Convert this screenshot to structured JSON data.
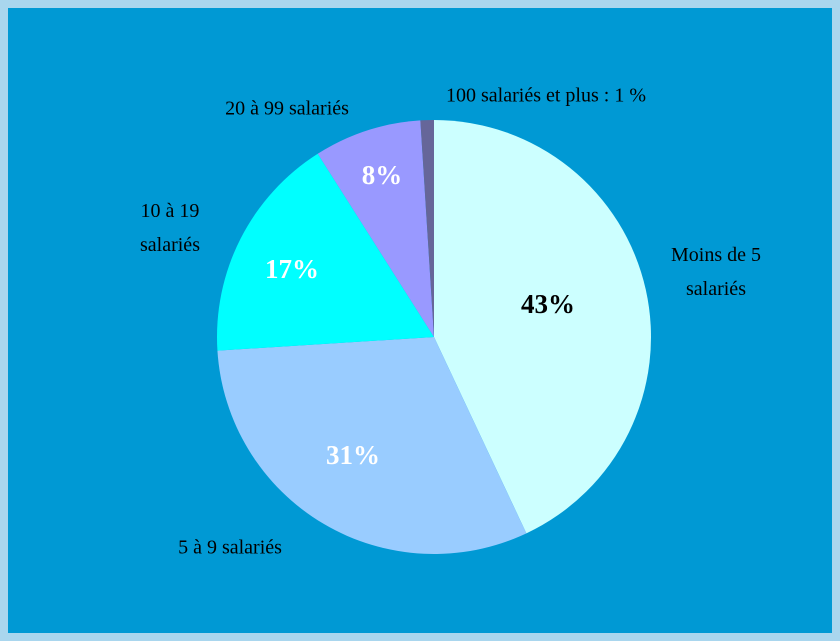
{
  "chart_data": {
    "type": "pie",
    "categories": [
      "Moins de 5\nsalariés",
      "5 à 9 salariés",
      "10 à 19\nsalariés",
      "20 à 99 salariés",
      "100 salariés et plus : 1 %"
    ],
    "values": [
      43,
      31,
      17,
      8,
      1
    ],
    "value_labels": [
      "43%",
      "31%",
      "17%",
      "8%",
      null
    ],
    "colors": [
      "#ccffff",
      "#99ccff",
      "#00ffff",
      "#9999ff",
      "#666699"
    ],
    "value_label_colors": [
      "#000000",
      "#ffffff",
      "#ffffff",
      "#ffffff",
      null
    ]
  }
}
